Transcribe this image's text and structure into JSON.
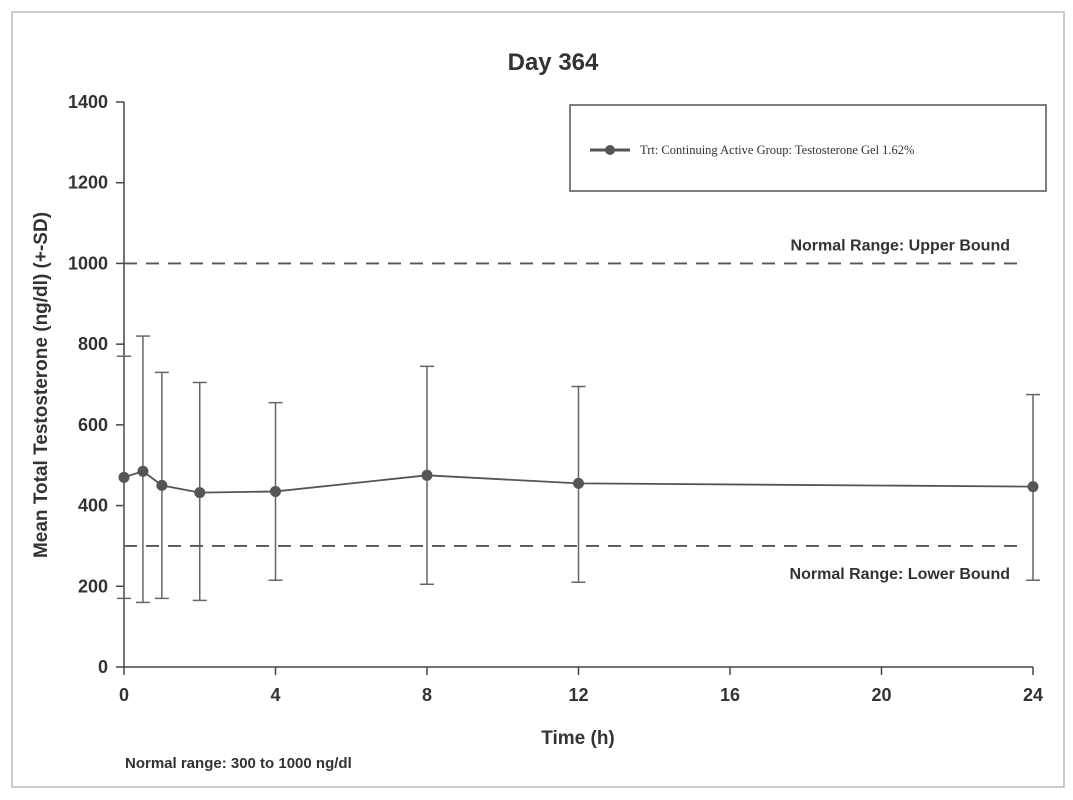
{
  "chart_data": {
    "type": "line",
    "title": "Day 364",
    "xlabel": "Time (h)",
    "ylabel": "Mean Total Testosterone (ng/dl) (+-SD)",
    "xlim": [
      0,
      24
    ],
    "ylim": [
      0,
      1400
    ],
    "xticks": [
      0,
      4,
      8,
      12,
      16,
      20,
      24
    ],
    "yticks": [
      0,
      200,
      400,
      600,
      800,
      1000,
      1200,
      1400
    ],
    "legend": "top-right",
    "grid": false,
    "series": [
      {
        "name": "Trt: Continuing Active Group: Testosterone Gel 1.62%",
        "color": "#555555",
        "x": [
          0,
          0.5,
          1,
          2,
          4,
          8,
          12,
          24
        ],
        "y": [
          470,
          485,
          450,
          432,
          435,
          475,
          455,
          447
        ],
        "err_upper": [
          770,
          820,
          730,
          705,
          655,
          745,
          695,
          675
        ],
        "err_lower": [
          170,
          160,
          170,
          165,
          215,
          205,
          210,
          215
        ]
      }
    ],
    "reference_lines": [
      {
        "label": "Normal Range: Upper Bound",
        "y": 1000
      },
      {
        "label": "Normal Range: Lower Bound",
        "y": 300
      }
    ],
    "footnote": "Normal range: 300 to 1000 ng/dl"
  }
}
